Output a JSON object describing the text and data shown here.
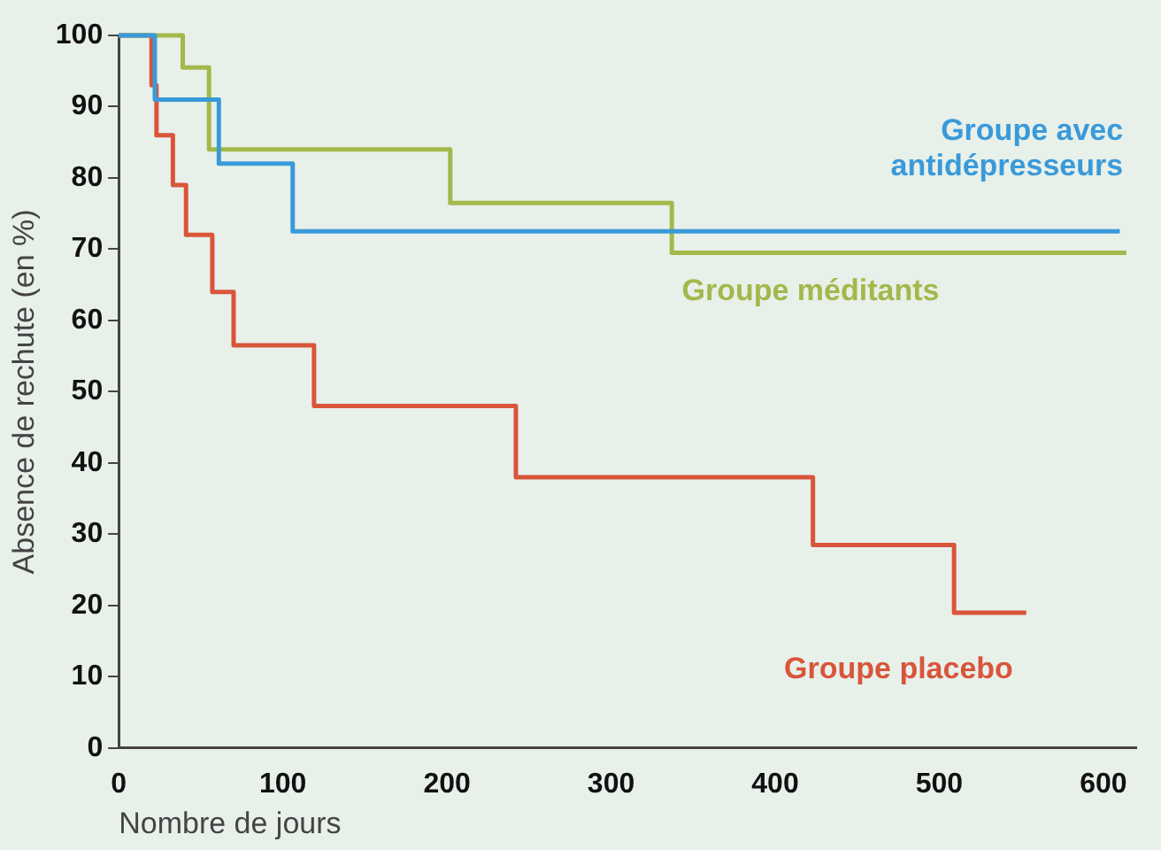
{
  "chart_data": {
    "type": "step",
    "xlabel": "Nombre de jours",
    "ylabel": "Absence de rechute (en %)",
    "xlim": [
      0,
      620
    ],
    "ylim": [
      0,
      100
    ],
    "xticks": [
      0,
      100,
      200,
      300,
      400,
      500,
      600
    ],
    "yticks": [
      0,
      10,
      20,
      30,
      40,
      50,
      60,
      70,
      80,
      90,
      100
    ],
    "grid": false,
    "legend": false,
    "marker": "none",
    "line_style": "solid",
    "series": [
      {
        "name": "Groupe avec antidépresseurs",
        "color": "#3a9ad9",
        "x": [
          0,
          22,
          61,
          106,
          610
        ],
        "values": [
          100,
          91,
          82,
          72.5,
          72.5
        ]
      },
      {
        "name": "Groupe méditants",
        "color": "#a3b84a",
        "x": [
          0,
          39,
          55,
          202,
          337,
          614
        ],
        "values": [
          100,
          95.5,
          84,
          76.5,
          69.5,
          69.5
        ]
      },
      {
        "name": "Groupe placebo",
        "color": "#d9553a",
        "x": [
          0,
          20,
          23,
          33,
          41,
          57,
          70,
          119,
          242,
          423,
          509,
          553
        ],
        "values": [
          100,
          93,
          86,
          79,
          72,
          64,
          56.5,
          48,
          38,
          28.5,
          19,
          19
        ]
      }
    ]
  }
}
